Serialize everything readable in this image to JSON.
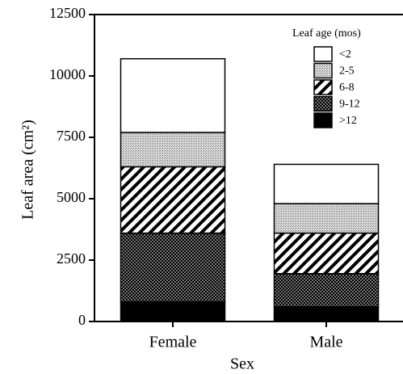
{
  "chart_data": {
    "type": "stacked-bar",
    "x_label": "Sex",
    "y_label": "Leaf area (cm²)",
    "legend_title": "Leaf age (mos)",
    "legend": "upper right",
    "categories": [
      "Female",
      "Male"
    ],
    "series": [
      {
        "name": ">12",
        "color": "#000000",
        "pattern": "solid",
        "values": [
          800,
          600
        ]
      },
      {
        "name": "9-12",
        "color": "#000000",
        "pattern": "dots",
        "values": [
          2800,
          1350
        ]
      },
      {
        "name": "6-8",
        "color": "#000000",
        "pattern": "hatch",
        "values": [
          2700,
          1650
        ]
      },
      {
        "name": "2-5",
        "color": "#888888",
        "pattern": "stipple",
        "values": [
          1400,
          1200
        ]
      },
      {
        "name": "<2",
        "color": "#ffffff",
        "pattern": "solid",
        "values": [
          3000,
          1600
        ]
      }
    ],
    "ylim": [
      0,
      12500
    ],
    "yticks": [
      0,
      2500,
      5000,
      7500,
      10000,
      12500
    ]
  }
}
